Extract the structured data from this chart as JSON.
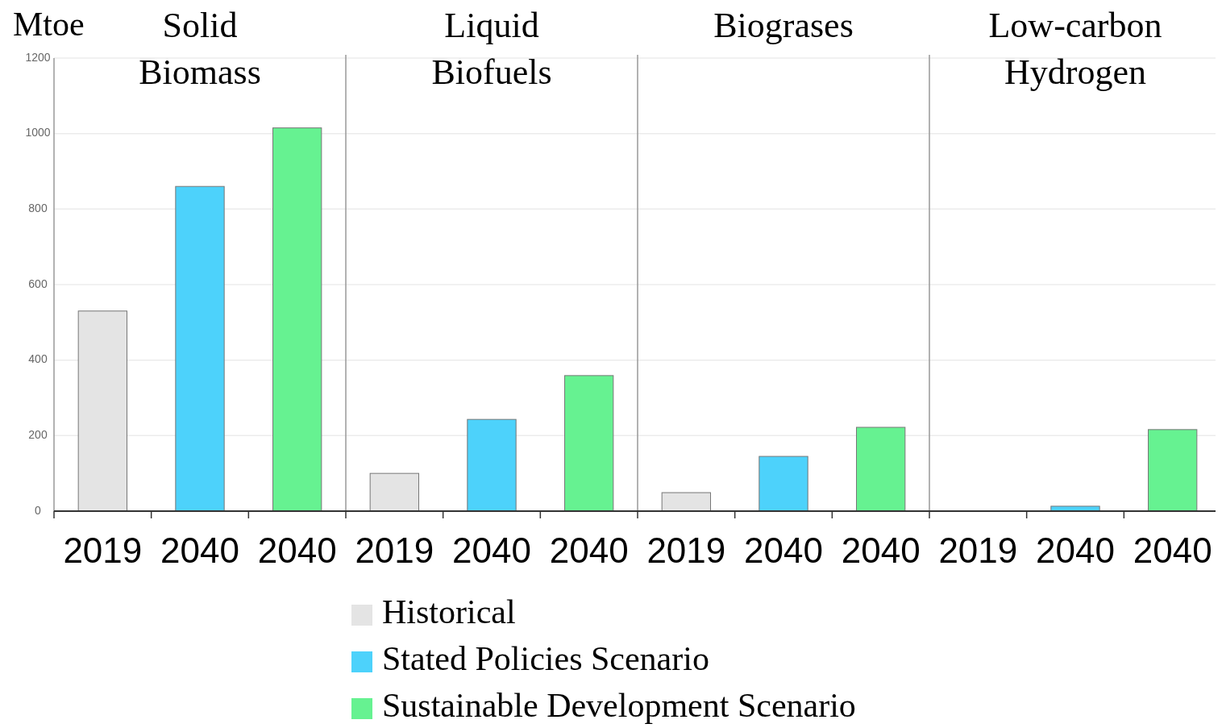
{
  "chart_data": {
    "type": "bar",
    "ylabel": "Mtoe",
    "categories": [
      "2019",
      "2040",
      "2040",
      "2019",
      "2040",
      "2040",
      "2019",
      "2040",
      "2040",
      "2019",
      "2040",
      "2040"
    ],
    "series": [
      {
        "name": "Historical",
        "color": "#e4e4e4",
        "values": [
          530,
          null,
          null,
          100,
          null,
          null,
          49,
          null,
          null,
          0,
          null,
          null
        ]
      },
      {
        "name": "Stated Policies Scenario",
        "color": "#4dd2fb",
        "values": [
          null,
          860,
          null,
          null,
          243,
          null,
          null,
          145,
          null,
          null,
          13,
          null
        ]
      },
      {
        "name": "Sustainable Development Scenario",
        "color": "#66f291",
        "values": [
          null,
          null,
          1015,
          null,
          null,
          359,
          null,
          null,
          222,
          null,
          null,
          216
        ]
      }
    ],
    "annotations": [
      "Solid Biomass",
      "Liquid Biofuels",
      "Biograses",
      "Low-carbon Hydrogen"
    ],
    "ylim": [
      0,
      1200
    ],
    "yticks": [
      0,
      200,
      400,
      600,
      800,
      1000,
      1200
    ],
    "grid": "y",
    "legend": "bottom"
  }
}
